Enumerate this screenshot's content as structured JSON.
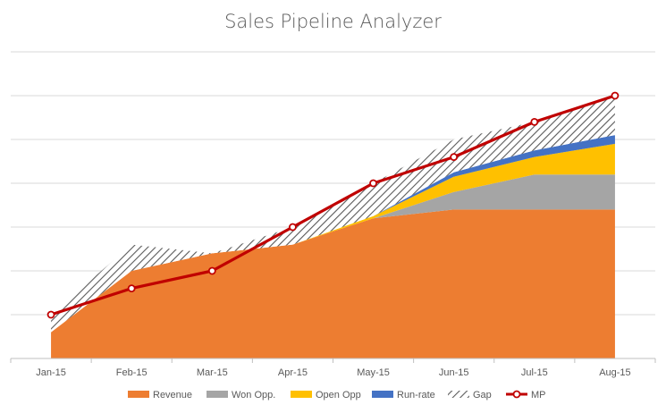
{
  "chart_data": {
    "type": "area",
    "title": "Sales Pipeline Analyzer",
    "categories": [
      "Jan-15",
      "Feb-15",
      "Mar-15",
      "Apr-15",
      "May-15",
      "Jun-15",
      "Jul-15",
      "Aug-15"
    ],
    "ylim": [
      0,
      7
    ],
    "grid": true,
    "legend_position": "bottom",
    "stacked_series": [
      {
        "name": "Revenue",
        "color": "#ED7D31",
        "pattern": "solid",
        "values": [
          0.6,
          2.0,
          2.4,
          2.6,
          3.2,
          3.4,
          3.4,
          3.4
        ]
      },
      {
        "name": "Won Opp.",
        "color": "#A5A5A5",
        "pattern": "solid",
        "values": [
          0,
          0,
          0,
          0,
          0,
          0.4,
          0.8,
          0.8
        ]
      },
      {
        "name": "Open Opp",
        "color": "#FFC000",
        "pattern": "solid",
        "values": [
          0,
          0,
          0,
          0,
          0.05,
          0.35,
          0.4,
          0.7
        ]
      },
      {
        "name": "Run-rate",
        "color": "#4472C4",
        "pattern": "solid",
        "values": [
          0,
          0,
          0,
          0,
          0,
          0.1,
          0.15,
          0.2
        ]
      },
      {
        "name": "Gap",
        "color": "#595959",
        "pattern": "hatch",
        "values": [
          0.4,
          0.6,
          0,
          0.4,
          0.75,
          0.75,
          0.65,
          0.9
        ]
      }
    ],
    "line_series": [
      {
        "name": "MP",
        "color": "#C00000",
        "values": [
          1.0,
          1.6,
          2.0,
          3.0,
          4.0,
          4.6,
          5.4,
          6.0
        ]
      }
    ]
  }
}
